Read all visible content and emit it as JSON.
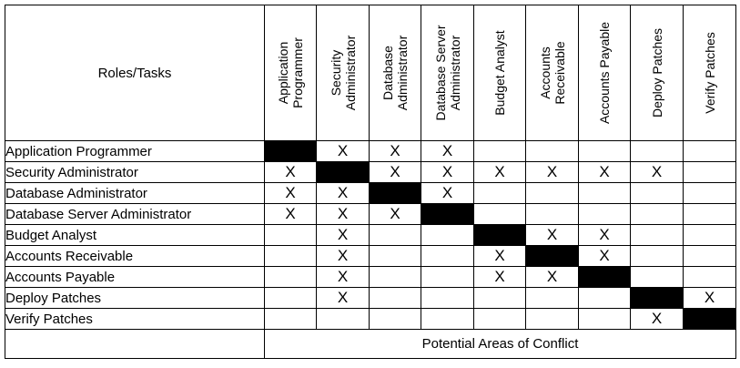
{
  "matrix": {
    "corner_label": "Roles/Tasks",
    "columns": [
      "Application\nProgrammer",
      "Security\nAdministrator",
      "Database\nAdministrator",
      "Database Server\nAdministrator",
      "Budget Analyst",
      "Accounts\nReceivable",
      "Accounts Payable",
      "Deploy Patches",
      "Verify Patches"
    ],
    "rows": [
      {
        "label": "Application Programmer",
        "cells": [
          "#",
          "X",
          "X",
          "X",
          "",
          "",
          "",
          "",
          ""
        ]
      },
      {
        "label": "Security Administrator",
        "cells": [
          "X",
          "#",
          "X",
          "X",
          "X",
          "X",
          "X",
          "X",
          ""
        ]
      },
      {
        "label": "Database Administrator",
        "cells": [
          "X",
          "X",
          "#",
          "X",
          "",
          "",
          "",
          "",
          ""
        ]
      },
      {
        "label": "Database Server Administrator",
        "cells": [
          "X",
          "X",
          "X",
          "#",
          "",
          "",
          "",
          "",
          ""
        ]
      },
      {
        "label": "Budget Analyst",
        "cells": [
          "",
          "X",
          "",
          "",
          "#",
          "X",
          "X",
          "",
          ""
        ]
      },
      {
        "label": "Accounts Receivable",
        "cells": [
          "",
          "X",
          "",
          "",
          "X",
          "#",
          "X",
          "",
          ""
        ]
      },
      {
        "label": "Accounts Payable",
        "cells": [
          "",
          "X",
          "",
          "",
          "X",
          "X",
          "#",
          "",
          ""
        ]
      },
      {
        "label": "Deploy Patches",
        "cells": [
          "",
          "X",
          "",
          "",
          "",
          "",
          "",
          "#",
          "X"
        ]
      },
      {
        "label": "Verify Patches",
        "cells": [
          "",
          "",
          "",
          "",
          "",
          "",
          "",
          "X",
          "#"
        ]
      }
    ],
    "footer_label": "Potential Areas of Conflict"
  }
}
